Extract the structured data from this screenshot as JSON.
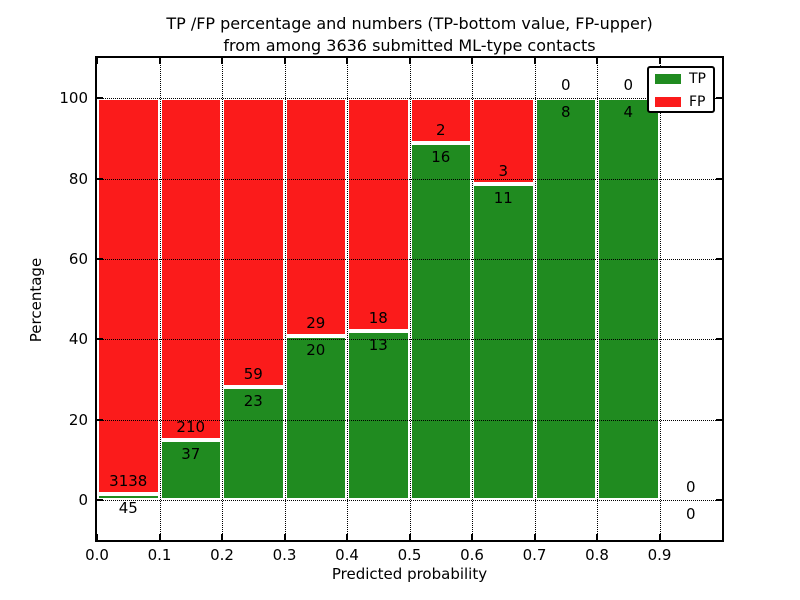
{
  "figure": {
    "title_line1": "TP /FP percentage and numbers (TP-bottom value, FP-upper)",
    "title_line2": "from among 3636 submitted ML-type contacts"
  },
  "legend": {
    "entries": [
      {
        "label": "TP",
        "color": "#208b20"
      },
      {
        "label": "FP",
        "color": "#fb1b1b"
      }
    ]
  },
  "chart_data": {
    "type": "bar",
    "stacked": true,
    "orientation": "vertical",
    "title": "TP /FP percentage and numbers (TP-bottom value, FP-upper) from among 3636 submitted ML-type contacts",
    "xlabel": "Predicted probability",
    "ylabel": "Percentage",
    "xlim": [
      0.0,
      1.0
    ],
    "ylim": [
      -10,
      110
    ],
    "grid": "dotted",
    "legend_position": "upper-right",
    "total_contacts": 3636,
    "x_ticks": [
      0.0,
      0.1,
      0.2,
      0.3,
      0.4,
      0.5,
      0.6,
      0.7,
      0.8,
      0.9
    ],
    "x_tick_labels": [
      "0.0",
      "0.1",
      "0.2",
      "0.3",
      "0.4",
      "0.5",
      "0.6",
      "0.7",
      "0.8",
      "0.9"
    ],
    "y_ticks": [
      0,
      20,
      40,
      60,
      80,
      100
    ],
    "y_tick_labels": [
      "0",
      "20",
      "40",
      "60",
      "80",
      "100"
    ],
    "series": [
      {
        "name": "TP",
        "position": "bottom",
        "color": "#208b20"
      },
      {
        "name": "FP",
        "position": "top",
        "color": "#fb1b1b"
      }
    ],
    "bins": [
      {
        "x_range": [
          0.0,
          0.1
        ],
        "tp": 45,
        "fp": 3138,
        "tp_pct": 1.4
      },
      {
        "x_range": [
          0.1,
          0.2
        ],
        "tp": 37,
        "fp": 210,
        "tp_pct": 15.0
      },
      {
        "x_range": [
          0.2,
          0.3
        ],
        "tp": 23,
        "fp": 59,
        "tp_pct": 28.0
      },
      {
        "x_range": [
          0.3,
          0.4
        ],
        "tp": 20,
        "fp": 29,
        "tp_pct": 40.8
      },
      {
        "x_range": [
          0.4,
          0.5
        ],
        "tp": 13,
        "fp": 18,
        "tp_pct": 41.9
      },
      {
        "x_range": [
          0.5,
          0.6
        ],
        "tp": 16,
        "fp": 2,
        "tp_pct": 88.9
      },
      {
        "x_range": [
          0.6,
          0.7
        ],
        "tp": 11,
        "fp": 3,
        "tp_pct": 78.6
      },
      {
        "x_range": [
          0.7,
          0.8
        ],
        "tp": 8,
        "fp": 0,
        "tp_pct": 100.0
      },
      {
        "x_range": [
          0.8,
          0.9
        ],
        "tp": 4,
        "fp": 0,
        "tp_pct": 100.0
      },
      {
        "x_range": [
          0.9,
          1.0
        ],
        "tp": 0,
        "fp": 0,
        "tp_pct": null
      }
    ]
  }
}
